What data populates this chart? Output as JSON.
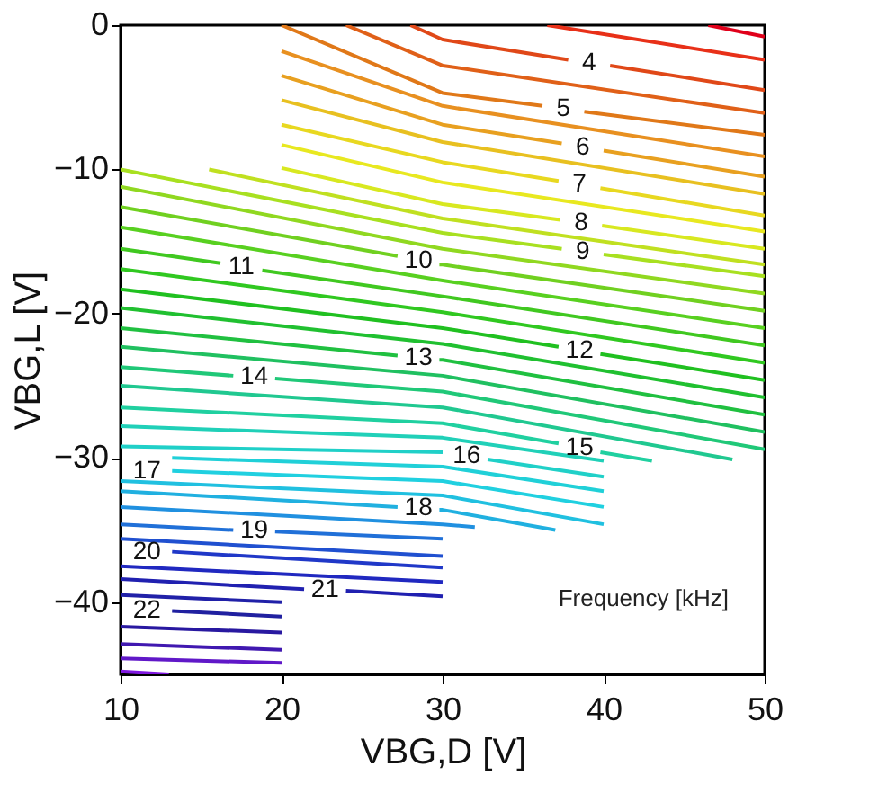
{
  "chart_data": {
    "type": "line",
    "xlabel": "VBG,D [V]",
    "ylabel": "VBG,L [V]",
    "xlim": [
      10,
      50
    ],
    "ylim": [
      -45,
      0
    ],
    "xticks": [
      10,
      20,
      30,
      40,
      50
    ],
    "yticks": [
      -40,
      -30,
      -20,
      -10,
      0
    ],
    "grid": false,
    "line_style": "solid",
    "marker": "none",
    "series": [
      {
        "color": "#e0001a",
        "x": [
          46.5,
          50
        ],
        "values": [
          0,
          -0.8
        ]
      },
      {
        "color": "#e83018",
        "x": [
          36.5,
          50
        ],
        "values": [
          0,
          -2.4
        ]
      },
      {
        "name": "4",
        "color": "#e04818",
        "x": [
          28,
          30,
          37.8,
          39.1,
          40.4,
          50
        ],
        "values": [
          0,
          -1,
          -2.4,
          null,
          -2.8,
          -4.5
        ]
      },
      {
        "color": "#e06018",
        "x": [
          24,
          30,
          50
        ],
        "values": [
          0,
          -2.8,
          -6.1
        ]
      },
      {
        "name": "5",
        "color": "#e07818",
        "x": [
          20,
          30,
          36.2,
          37.5,
          38.8,
          50
        ],
        "values": [
          0,
          -4.7,
          -5.6,
          null,
          -6,
          -7.6
        ]
      },
      {
        "color": "#e89020",
        "x": [
          20,
          30,
          50
        ],
        "values": [
          -1.8,
          -5.6,
          -9.1
        ]
      },
      {
        "name": "6",
        "color": "#e8a020",
        "x": [
          20,
          30,
          37.4,
          38.7,
          40,
          50
        ],
        "values": [
          -3.5,
          -6.9,
          -8.2,
          null,
          -8.7,
          -10.5
        ]
      },
      {
        "color": "#e8c020",
        "x": [
          20,
          30,
          50
        ],
        "values": [
          -5.2,
          -8.1,
          -11.7
        ]
      },
      {
        "name": "7",
        "color": "#e8d820",
        "x": [
          20,
          30,
          37.2,
          38.5,
          39.8,
          50
        ],
        "values": [
          -6.9,
          -9.5,
          -10.8,
          null,
          -11.3,
          -13.2
        ]
      },
      {
        "color": "#e8e820",
        "x": [
          20,
          30,
          50
        ],
        "values": [
          -8.3,
          -10.9,
          -14.3
        ]
      },
      {
        "name": "8",
        "color": "#d8e820",
        "x": [
          20,
          30,
          37.3,
          38.6,
          39.9,
          50
        ],
        "values": [
          -9.9,
          -12.4,
          -13.5,
          null,
          -13.9,
          -15.5
        ]
      },
      {
        "color": "#c0e020",
        "x": [
          15.5,
          30,
          50
        ],
        "values": [
          -10,
          -13.4,
          -16.6
        ]
      },
      {
        "name": "9",
        "color": "#a8e020",
        "x": [
          10,
          30,
          37.4,
          38.7,
          40,
          50
        ],
        "values": [
          -10,
          -14.4,
          -15.5,
          null,
          -15.9,
          -17.4
        ]
      },
      {
        "color": "#90d820",
        "x": [
          10,
          30,
          50
        ],
        "values": [
          -11.2,
          -15.5,
          -18.6
        ]
      },
      {
        "name": "10",
        "color": "#70d020",
        "x": [
          10,
          27.2,
          28.5,
          29.8,
          30,
          50
        ],
        "values": [
          -12.6,
          -16,
          null,
          -16.6,
          -16.6,
          -19.8
        ]
      },
      {
        "color": "#58d020",
        "x": [
          10,
          30,
          50
        ],
        "values": [
          -14,
          -17.7,
          -21
        ]
      },
      {
        "name": "11",
        "color": "#40c820",
        "x": [
          10,
          16.2,
          17.5,
          18.8,
          30,
          50
        ],
        "values": [
          -15.5,
          -16.5,
          null,
          -17,
          -18.8,
          -22.2
        ]
      },
      {
        "color": "#30c820",
        "x": [
          10,
          30,
          50
        ],
        "values": [
          -16.9,
          -19.9,
          -23.4
        ]
      },
      {
        "name": "12",
        "color": "#20c020",
        "x": [
          10,
          30,
          37.2,
          38.5,
          39.8,
          50
        ],
        "values": [
          -18.3,
          -21,
          -22.3,
          null,
          -22.8,
          -24.6
        ]
      },
      {
        "color": "#20c030",
        "x": [
          10,
          30,
          50
        ],
        "values": [
          -19.6,
          -22.1,
          -25.8
        ]
      },
      {
        "name": "13",
        "color": "#20c040",
        "x": [
          10,
          27.2,
          28.5,
          29.8,
          30,
          50
        ],
        "values": [
          -21,
          -22.9,
          null,
          -23.2,
          -23.2,
          -27
        ]
      },
      {
        "color": "#20c060",
        "x": [
          10,
          30,
          50
        ],
        "values": [
          -22.3,
          -24.3,
          -28.2
        ]
      },
      {
        "name": "14",
        "color": "#20c878",
        "x": [
          10,
          17,
          18.3,
          19.6,
          30,
          50
        ],
        "values": [
          -23.7,
          -24.3,
          null,
          -24.5,
          -25.4,
          -29.4
        ]
      },
      {
        "color": "#20c890",
        "x": [
          10,
          30,
          48
        ],
        "values": [
          -25,
          -26.5,
          -30.1
        ]
      },
      {
        "name": "15",
        "color": "#20d0a0",
        "x": [
          10,
          30,
          37.2,
          38.5,
          39.8,
          43
        ],
        "values": [
          -26.5,
          -27.6,
          -29,
          null,
          -29.6,
          -30.2
        ]
      },
      {
        "color": "#20d0b8",
        "x": [
          10,
          30,
          40
        ],
        "values": [
          -27.8,
          -28.6,
          -30.2
        ]
      },
      {
        "name": "16",
        "color": "#20d0c8",
        "x": [
          10,
          30,
          31.5,
          32.8,
          40
        ],
        "values": [
          -29.2,
          -29.6,
          null,
          -30.1,
          -31.3
        ]
      },
      {
        "color": "#20d0d8",
        "x": [
          13.2,
          30,
          40
        ],
        "values": [
          -30,
          -30.6,
          -32.3
        ]
      },
      {
        "name": "17",
        "color": "#20d0e0",
        "x": [
          13.2,
          30,
          40
        ],
        "values": [
          -30.9,
          -31.6,
          -33.4
        ]
      },
      {
        "color": "#20c0e0",
        "x": [
          10,
          30,
          40
        ],
        "values": [
          -31.6,
          -32.6,
          -34.6
        ]
      },
      {
        "name": "18",
        "color": "#20b0e0",
        "x": [
          10,
          27.2,
          28.5,
          29.8,
          30,
          37
        ],
        "values": [
          -32.3,
          -33.4,
          null,
          -33.6,
          -33.6,
          -35
        ]
      },
      {
        "color": "#2090e0",
        "x": [
          10,
          30,
          32
        ],
        "values": [
          -33.4,
          -34.6,
          -34.8
        ]
      },
      {
        "name": "19",
        "color": "#2070d8",
        "x": [
          10,
          17,
          18.3,
          19.6,
          30
        ],
        "values": [
          -34.6,
          -35,
          null,
          -35.1,
          -35.6
        ]
      },
      {
        "color": "#2050d0",
        "x": [
          10,
          30
        ],
        "values": [
          -35.6,
          -36.8
        ]
      },
      {
        "name": "20",
        "color": "#2038c8",
        "x": [
          13.2,
          30
        ],
        "values": [
          -36.5,
          -37.6
        ]
      },
      {
        "color": "#2028c0",
        "x": [
          10,
          30
        ],
        "values": [
          -37.5,
          -38.6
        ]
      },
      {
        "name": "21",
        "color": "#2020b0",
        "x": [
          10,
          21.4,
          22.7,
          24,
          30
        ],
        "values": [
          -38.4,
          -39.1,
          null,
          -39.2,
          -39.6
        ]
      },
      {
        "color": "#2020a8",
        "x": [
          10,
          20
        ],
        "values": [
          -39.5,
          -40
        ]
      },
      {
        "name": "22",
        "color": "#2020a0",
        "x": [
          13.2,
          20
        ],
        "values": [
          -40.6,
          -41
        ]
      },
      {
        "color": "#2818a0",
        "x": [
          10,
          20
        ],
        "values": [
          -41.7,
          -42.1
        ]
      },
      {
        "color": "#4018b0",
        "x": [
          10,
          20
        ],
        "values": [
          -42.9,
          -43.3
        ]
      },
      {
        "color": "#6018c8",
        "x": [
          10,
          20
        ],
        "values": [
          -43.9,
          -44.2
        ]
      },
      {
        "color": "#8018e0",
        "x": [
          10,
          13
        ],
        "values": [
          -44.8,
          -45
        ]
      }
    ],
    "annotations": [
      "Frequency [kHz]"
    ]
  }
}
